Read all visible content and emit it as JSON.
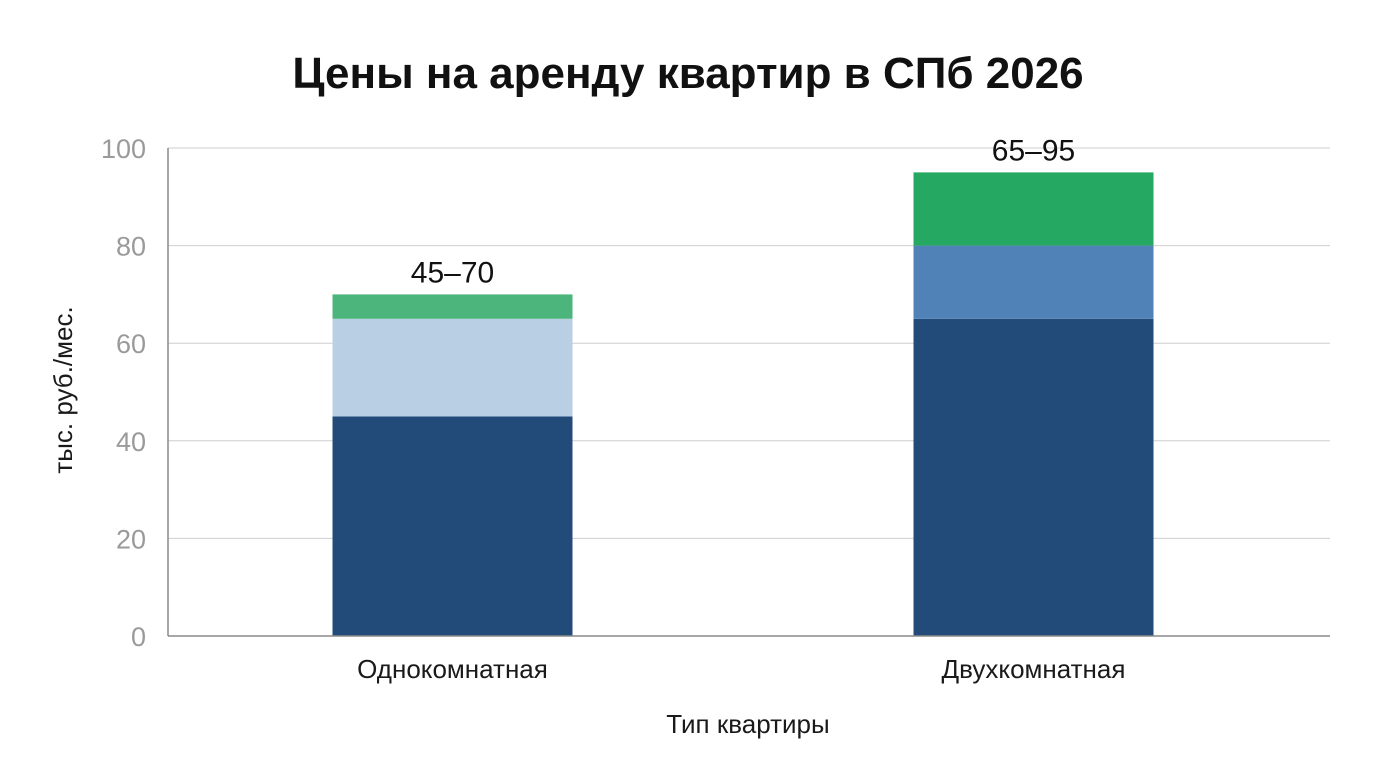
{
  "chart_data": {
    "type": "bar",
    "stacked": true,
    "title": "Цены на аренду квартир в СПб 2026",
    "xlabel": "Тип квартиры",
    "ylabel": "тыс. руб./мес.",
    "ylim": [
      0,
      100
    ],
    "yticks": [
      "0",
      "20",
      "40",
      "60",
      "80",
      "100"
    ],
    "grid": true,
    "categories": [
      "Однокомнатная",
      "Двухкомнатная"
    ],
    "stacks": [
      {
        "category": "Однокомнатная",
        "range_label": "45–70",
        "segments": [
          {
            "from": 0,
            "to": 45,
            "color": "#234b7a"
          },
          {
            "from": 45,
            "to": 65,
            "color": "#b9cfe4"
          },
          {
            "from": 65,
            "to": 70,
            "color": "#4cb57b"
          }
        ]
      },
      {
        "category": "Двухкомнатная",
        "range_label": "65–95",
        "segments": [
          {
            "from": 0,
            "to": 65,
            "color": "#234b7a"
          },
          {
            "from": 65,
            "to": 80,
            "color": "#5082b8"
          },
          {
            "from": 80,
            "to": 95,
            "color": "#24a862"
          }
        ]
      }
    ]
  }
}
